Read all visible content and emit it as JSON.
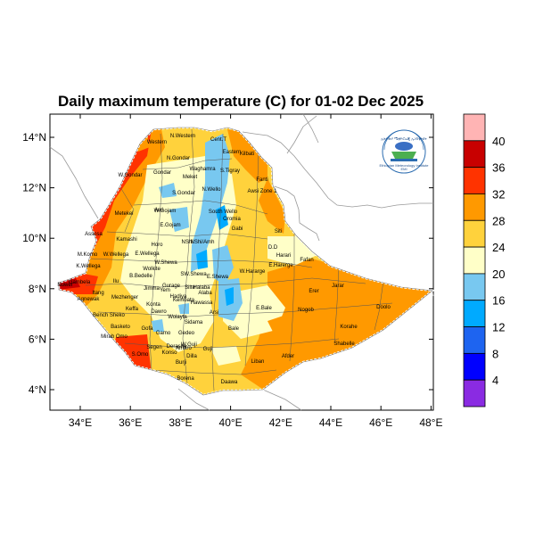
{
  "title": "Daily maximum temperature (C) for 01-02 Dec 2025",
  "x_ticks": [
    "34°E",
    "36°E",
    "38°E",
    "40°E",
    "42°E",
    "44°E",
    "46°E",
    "48°E"
  ],
  "y_ticks": [
    "4°N",
    "6°N",
    "8°N",
    "10°N",
    "12°N",
    "14°N"
  ],
  "colorbar": {
    "levels": [
      "4",
      "8",
      "12",
      "16",
      "20",
      "24",
      "28",
      "32",
      "36",
      "40"
    ],
    "colors": [
      "#8a2be2",
      "#0000ff",
      "#1e64f0",
      "#00aaff",
      "#78c8f0",
      "#ffffc8",
      "#ffd23c",
      "#ff9900",
      "#ff3300",
      "#c80000",
      "#ffb4b4"
    ]
  },
  "region_labels": [
    "Western",
    "N.Western",
    "Cent.T",
    "Eastern",
    "Gondar",
    "N.Gondar",
    "Waghamra",
    "S.Tigray",
    "Kilbati",
    "W.Gondar",
    "S.Gondar",
    "N.Wello",
    "Fanti",
    "Awsi Zone 1",
    "Metekel",
    "Awi",
    "W.Gojam",
    "E.Gojam",
    "South Wello",
    "Oromia",
    "Gabi",
    "Assosa",
    "Kamashi",
    "Horo",
    "NShi",
    "NShi/Amh",
    "Siti",
    "D.D",
    "Harari",
    "M.Komo",
    "W.Wellega",
    "E.Wellega",
    "W.Shewa",
    "E.Harerge",
    "Fafan",
    "K.Wellega",
    "B.Bedelle",
    "SW.Shewa",
    "E.Shewa",
    "W.Hararge",
    "Jarar",
    "Gambela",
    "Jimma",
    "Arsi",
    "Erer",
    "Agnewak",
    "Keffa",
    "Hadiya",
    "Bench Sheko",
    "Dawro",
    "Wolayta",
    "Sidama",
    "E.Bale",
    "Nogob",
    "Doolo",
    "Mirab Omo",
    "Gamo",
    "Gedeo",
    "Korahe",
    "Shabelle",
    "Nuwer",
    "S.Omo",
    "Guji",
    "Bale",
    "Liban",
    "Afder",
    "Borena",
    "Daawa",
    "Ilu",
    "Itang",
    "Konta",
    "Segen",
    "Amaro",
    "W.Guji",
    "Kembata",
    "Gurage",
    "Yem",
    "Silte",
    "Halaba",
    "Alaba",
    "Burji",
    "Wolkite",
    "Gofa",
    "Konso",
    "Meket",
    "Derashe",
    "Basketo",
    "Mezhenger",
    "Hawassa",
    "Dilla"
  ],
  "logo": {
    "arc_text": "ኢትዮጵያ ሜቲዮሮሎጂ ኢንስቲትዩት",
    "caption": "Ethiopian Meteorology Institute",
    "code": "EMI"
  }
}
